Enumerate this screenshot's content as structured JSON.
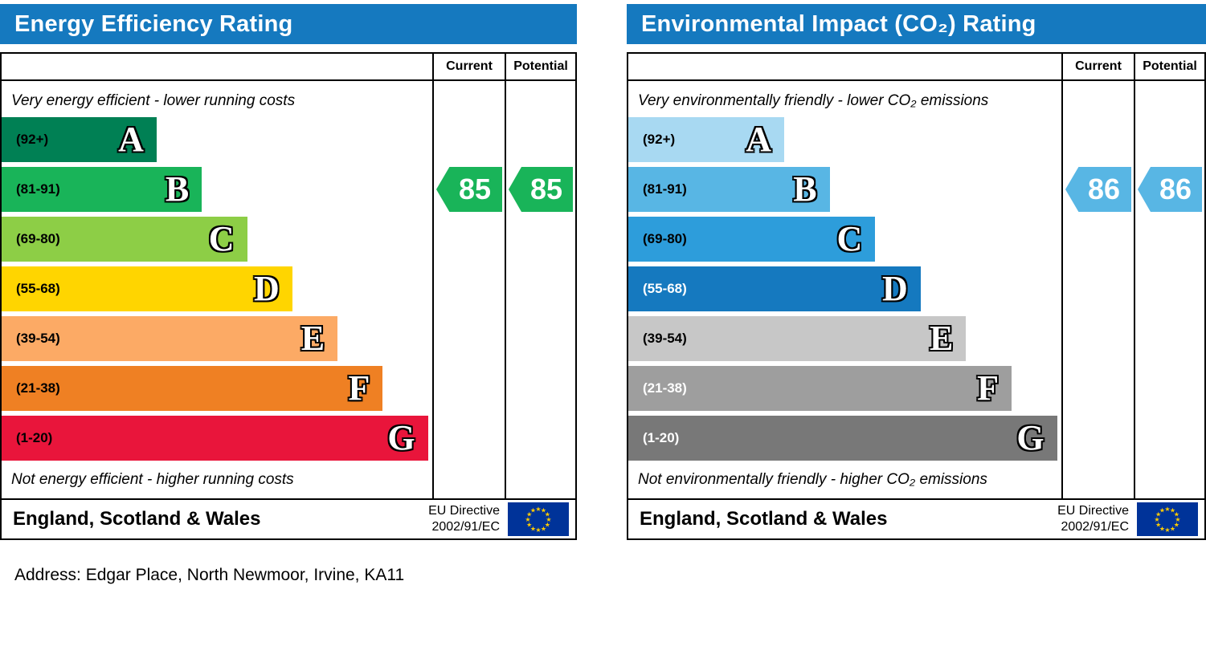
{
  "address": "Address: Edgar Place, North Newmoor, Irvine, KA11",
  "chart_data": [
    {
      "type": "bar",
      "title": "Energy Efficiency Rating",
      "header_color": "#1579bf",
      "col_current": "Current",
      "col_potential": "Potential",
      "top_note": "Very energy efficient - lower running costs",
      "bottom_note": "Not energy efficient - higher running costs",
      "xlim": [
        1,
        100
      ],
      "bands": [
        {
          "letter": "A",
          "range": "(92+)",
          "range_min": 92,
          "range_max": 100,
          "color": "#008054",
          "width_pct": 36,
          "range_color": "#000000"
        },
        {
          "letter": "B",
          "range": "(81-91)",
          "range_min": 81,
          "range_max": 91,
          "color": "#19b459",
          "width_pct": 46.5,
          "range_color": "#000000"
        },
        {
          "letter": "C",
          "range": "(69-80)",
          "range_min": 69,
          "range_max": 80,
          "color": "#8dce46",
          "width_pct": 57,
          "range_color": "#000000"
        },
        {
          "letter": "D",
          "range": "(55-68)",
          "range_min": 55,
          "range_max": 68,
          "color": "#ffd500",
          "width_pct": 67.5,
          "range_color": "#000000"
        },
        {
          "letter": "E",
          "range": "(39-54)",
          "range_min": 39,
          "range_max": 54,
          "color": "#fcaa65",
          "width_pct": 78,
          "range_color": "#000000"
        },
        {
          "letter": "F",
          "range": "(21-38)",
          "range_min": 21,
          "range_max": 38,
          "color": "#ef8023",
          "width_pct": 88.5,
          "range_color": "#000000"
        },
        {
          "letter": "G",
          "range": "(1-20)",
          "range_min": 1,
          "range_max": 20,
          "color": "#e9153b",
          "width_pct": 99,
          "range_color": "#000000"
        }
      ],
      "current": {
        "value": 85,
        "band": "B",
        "arrow_color": "#19b459"
      },
      "potential": {
        "value": 85,
        "band": "B",
        "arrow_color": "#19b459"
      },
      "footer": {
        "region": "England, Scotland & Wales",
        "directive": [
          "EU Directive",
          "2002/91/EC"
        ]
      }
    },
    {
      "type": "bar",
      "title": "Environmental Impact (CO₂) Rating",
      "header_color": "#1579bf",
      "col_current": "Current",
      "col_potential": "Potential",
      "top_note": "Very environmentally friendly - lower CO₂ emissions",
      "bottom_note": "Not environmentally friendly - higher CO₂ emissions",
      "xlim": [
        1,
        100
      ],
      "bands": [
        {
          "letter": "A",
          "range": "(92+)",
          "range_min": 92,
          "range_max": 100,
          "color": "#a8d9f2",
          "width_pct": 36,
          "range_color": "#000000"
        },
        {
          "letter": "B",
          "range": "(81-91)",
          "range_min": 81,
          "range_max": 91,
          "color": "#58b6e4",
          "width_pct": 46.5,
          "range_color": "#000000"
        },
        {
          "letter": "C",
          "range": "(69-80)",
          "range_min": 69,
          "range_max": 80,
          "color": "#2d9ddb",
          "width_pct": 57,
          "range_color": "#000000"
        },
        {
          "letter": "D",
          "range": "(55-68)",
          "range_min": 55,
          "range_max": 68,
          "color": "#1579bf",
          "width_pct": 67.5,
          "range_color": "#ffffff"
        },
        {
          "letter": "E",
          "range": "(39-54)",
          "range_min": 39,
          "range_max": 54,
          "color": "#c7c7c7",
          "width_pct": 78,
          "range_color": "#000000"
        },
        {
          "letter": "F",
          "range": "(21-38)",
          "range_min": 21,
          "range_max": 38,
          "color": "#9e9e9e",
          "width_pct": 88.5,
          "range_color": "#ffffff"
        },
        {
          "letter": "G",
          "range": "(1-20)",
          "range_min": 1,
          "range_max": 20,
          "color": "#787878",
          "width_pct": 99,
          "range_color": "#ffffff"
        }
      ],
      "current": {
        "value": 86,
        "band": "B",
        "arrow_color": "#58b6e4"
      },
      "potential": {
        "value": 86,
        "band": "B",
        "arrow_color": "#58b6e4"
      },
      "footer": {
        "region": "England, Scotland & Wales",
        "directive": [
          "EU Directive",
          "2002/91/EC"
        ]
      }
    }
  ]
}
